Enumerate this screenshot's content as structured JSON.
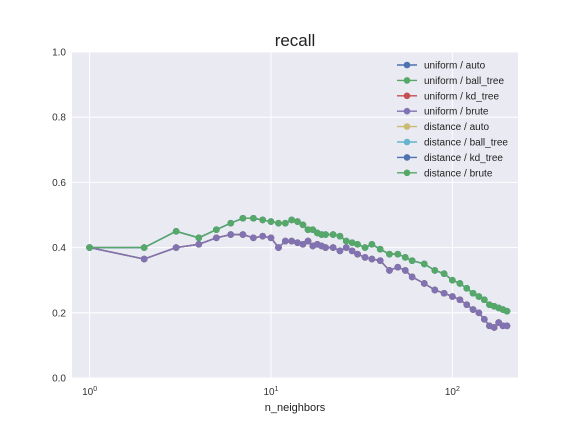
{
  "chart_data": {
    "type": "line",
    "title": "recall",
    "xlabel": "n_neighbors",
    "ylabel": "",
    "xscale": "log",
    "xlim": [
      0.8,
      230
    ],
    "ylim": [
      0.0,
      1.0
    ],
    "xticks": [
      1,
      10,
      100
    ],
    "xtick_labels": [
      {
        "base": "10",
        "exp": "0"
      },
      {
        "base": "10",
        "exp": "1"
      },
      {
        "base": "10",
        "exp": "2"
      }
    ],
    "yticks": [
      0.0,
      0.2,
      0.4,
      0.6,
      0.8,
      1.0
    ],
    "ytick_labels": [
      "0.0",
      "0.2",
      "0.4",
      "0.6",
      "0.8",
      "1.0"
    ],
    "grid": true,
    "legend_position": "top-right",
    "x": [
      1,
      2,
      3,
      4,
      5,
      6,
      7,
      8,
      9,
      10,
      11,
      12,
      13,
      14,
      15,
      16,
      17,
      18,
      19,
      20,
      22,
      24,
      26,
      28,
      30,
      33,
      36,
      40,
      45,
      50,
      55,
      60,
      70,
      80,
      90,
      100,
      110,
      120,
      130,
      140,
      150,
      160,
      170,
      180,
      190,
      200
    ],
    "series": [
      {
        "name": "uniform / auto",
        "color": "#4c72b0",
        "values": [
          0.4,
          0.365,
          0.4,
          0.41,
          0.43,
          0.44,
          0.44,
          0.43,
          0.435,
          0.43,
          0.4,
          0.42,
          0.42,
          0.415,
          0.41,
          0.42,
          0.405,
          0.41,
          0.405,
          0.4,
          0.4,
          0.39,
          0.4,
          0.39,
          0.38,
          0.37,
          0.365,
          0.36,
          0.33,
          0.34,
          0.33,
          0.31,
          0.29,
          0.27,
          0.26,
          0.25,
          0.24,
          0.225,
          0.21,
          0.2,
          0.18,
          0.16,
          0.155,
          0.17,
          0.16,
          0.16
        ]
      },
      {
        "name": "uniform / ball_tree",
        "color": "#55a868",
        "values": [
          0.4,
          0.365,
          0.4,
          0.41,
          0.43,
          0.44,
          0.44,
          0.43,
          0.435,
          0.43,
          0.4,
          0.42,
          0.42,
          0.415,
          0.41,
          0.42,
          0.405,
          0.41,
          0.405,
          0.4,
          0.4,
          0.39,
          0.4,
          0.39,
          0.38,
          0.37,
          0.365,
          0.36,
          0.33,
          0.34,
          0.33,
          0.31,
          0.29,
          0.27,
          0.26,
          0.25,
          0.24,
          0.225,
          0.21,
          0.2,
          0.18,
          0.16,
          0.155,
          0.17,
          0.16,
          0.16
        ]
      },
      {
        "name": "uniform / kd_tree",
        "color": "#c44e52",
        "values": [
          0.4,
          0.365,
          0.4,
          0.41,
          0.43,
          0.44,
          0.44,
          0.43,
          0.435,
          0.43,
          0.4,
          0.42,
          0.42,
          0.415,
          0.41,
          0.42,
          0.405,
          0.41,
          0.405,
          0.4,
          0.4,
          0.39,
          0.4,
          0.39,
          0.38,
          0.37,
          0.365,
          0.36,
          0.33,
          0.34,
          0.33,
          0.31,
          0.29,
          0.27,
          0.26,
          0.25,
          0.24,
          0.225,
          0.21,
          0.2,
          0.18,
          0.16,
          0.155,
          0.17,
          0.16,
          0.16
        ]
      },
      {
        "name": "uniform / brute",
        "color": "#8172b2",
        "values": [
          0.4,
          0.365,
          0.4,
          0.41,
          0.43,
          0.44,
          0.44,
          0.43,
          0.435,
          0.43,
          0.4,
          0.42,
          0.42,
          0.415,
          0.41,
          0.42,
          0.405,
          0.41,
          0.405,
          0.4,
          0.4,
          0.39,
          0.4,
          0.39,
          0.38,
          0.37,
          0.365,
          0.36,
          0.33,
          0.34,
          0.33,
          0.31,
          0.29,
          0.27,
          0.26,
          0.25,
          0.24,
          0.225,
          0.21,
          0.2,
          0.18,
          0.16,
          0.155,
          0.17,
          0.16,
          0.16
        ]
      },
      {
        "name": "distance / auto",
        "color": "#ccb974",
        "values": [
          0.4,
          0.4,
          0.45,
          0.43,
          0.455,
          0.475,
          0.49,
          0.49,
          0.485,
          0.48,
          0.475,
          0.475,
          0.485,
          0.48,
          0.47,
          0.455,
          0.455,
          0.445,
          0.44,
          0.44,
          0.44,
          0.435,
          0.42,
          0.415,
          0.41,
          0.4,
          0.41,
          0.395,
          0.38,
          0.38,
          0.37,
          0.36,
          0.35,
          0.33,
          0.32,
          0.3,
          0.29,
          0.275,
          0.26,
          0.25,
          0.24,
          0.225,
          0.22,
          0.215,
          0.21,
          0.205
        ]
      },
      {
        "name": "distance / ball_tree",
        "color": "#64b5cd",
        "values": [
          0.4,
          0.4,
          0.45,
          0.43,
          0.455,
          0.475,
          0.49,
          0.49,
          0.485,
          0.48,
          0.475,
          0.475,
          0.485,
          0.48,
          0.47,
          0.455,
          0.455,
          0.445,
          0.44,
          0.44,
          0.44,
          0.435,
          0.42,
          0.415,
          0.41,
          0.4,
          0.41,
          0.395,
          0.38,
          0.38,
          0.37,
          0.36,
          0.35,
          0.33,
          0.32,
          0.3,
          0.29,
          0.275,
          0.26,
          0.25,
          0.24,
          0.225,
          0.22,
          0.215,
          0.21,
          0.205
        ]
      },
      {
        "name": "distance / kd_tree",
        "color": "#4c72b0",
        "values": [
          0.4,
          0.4,
          0.45,
          0.43,
          0.455,
          0.475,
          0.49,
          0.49,
          0.485,
          0.48,
          0.475,
          0.475,
          0.485,
          0.48,
          0.47,
          0.455,
          0.455,
          0.445,
          0.44,
          0.44,
          0.44,
          0.435,
          0.42,
          0.415,
          0.41,
          0.4,
          0.41,
          0.395,
          0.38,
          0.38,
          0.37,
          0.36,
          0.35,
          0.33,
          0.32,
          0.3,
          0.29,
          0.275,
          0.26,
          0.25,
          0.24,
          0.225,
          0.22,
          0.215,
          0.21,
          0.205
        ]
      },
      {
        "name": "distance / brute",
        "color": "#55a868",
        "values": [
          0.4,
          0.4,
          0.45,
          0.43,
          0.455,
          0.475,
          0.49,
          0.49,
          0.485,
          0.48,
          0.475,
          0.475,
          0.485,
          0.48,
          0.47,
          0.455,
          0.455,
          0.445,
          0.44,
          0.44,
          0.44,
          0.435,
          0.42,
          0.415,
          0.41,
          0.4,
          0.41,
          0.395,
          0.38,
          0.38,
          0.37,
          0.36,
          0.35,
          0.33,
          0.32,
          0.3,
          0.29,
          0.275,
          0.26,
          0.25,
          0.24,
          0.225,
          0.22,
          0.215,
          0.21,
          0.205
        ]
      }
    ]
  },
  "colors": {
    "axes_background": "#eaeaf2",
    "grid": "#ffffff"
  }
}
